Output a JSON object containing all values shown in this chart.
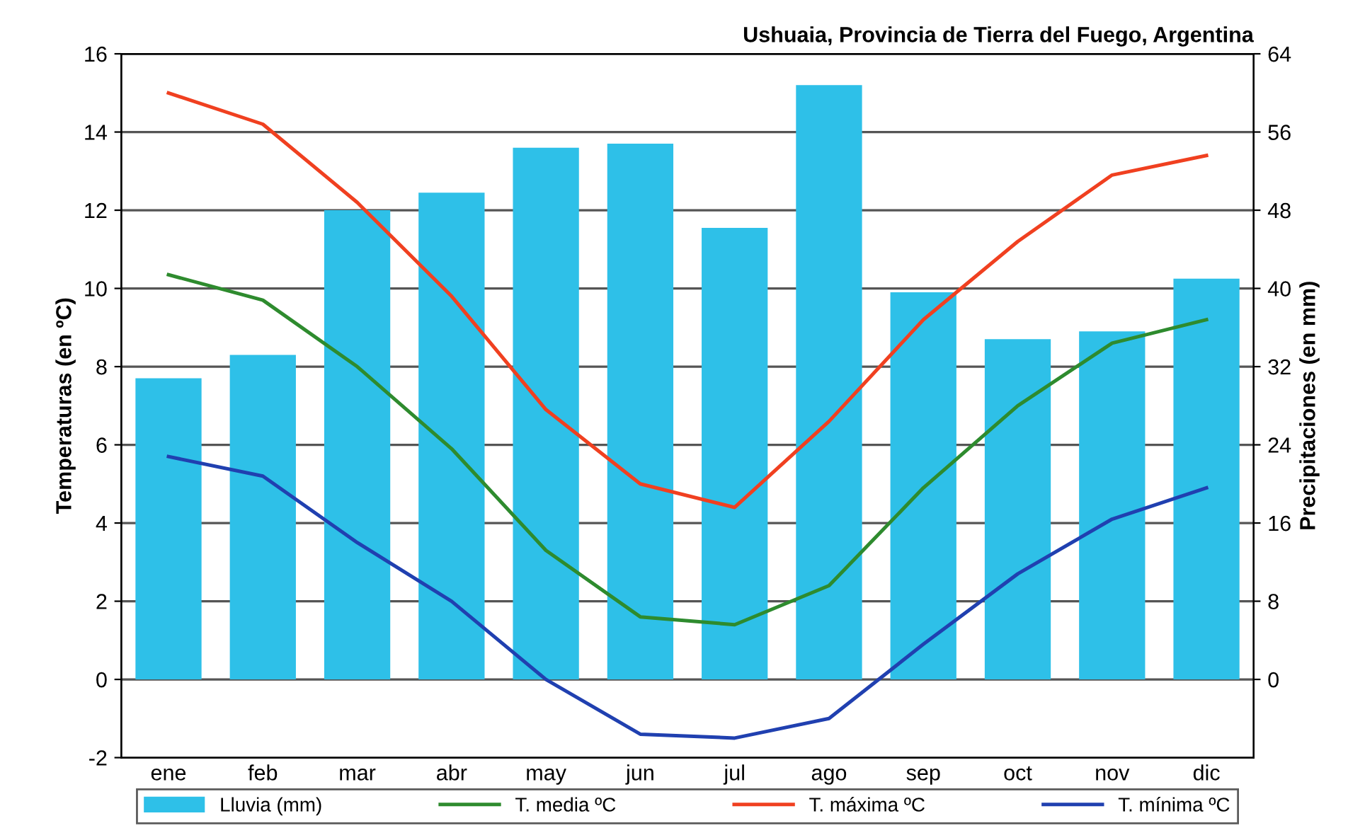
{
  "chart_data": {
    "type": "bar",
    "title": "Ushuaia, Provincia de Tierra del Fuego, Argentina",
    "ylabel": "Temperaturas (en ºC)",
    "y2label": "Precipitaciones (en mm)",
    "categories": [
      "ene",
      "feb",
      "mar",
      "abr",
      "may",
      "jun",
      "jul",
      "ago",
      "sep",
      "oct",
      "nov",
      "dic"
    ],
    "series": [
      {
        "name": "Lluvia (mm)",
        "axis": "y2",
        "color": "#2ec0e8",
        "values": [
          30.8,
          33.2,
          48,
          49.8,
          54.4,
          54.8,
          46.2,
          60.8,
          39.6,
          34.8,
          35.6,
          41
        ]
      },
      {
        "name": "T. media ºC",
        "type": "line",
        "color": "#2e8b2e",
        "values": [
          10.35,
          9.7,
          8.0,
          5.9,
          3.3,
          1.6,
          1.4,
          2.4,
          4.9,
          7.0,
          8.6,
          9.2
        ]
      },
      {
        "name": "T. máxima ºC",
        "type": "line",
        "color": "#f04020",
        "values": [
          15.0,
          14.2,
          12.2,
          9.8,
          6.9,
          5.0,
          4.4,
          6.6,
          9.2,
          11.2,
          12.9,
          13.4
        ]
      },
      {
        "name": "T. mínima ºC",
        "type": "line",
        "color": "#2040b0",
        "values": [
          5.7,
          5.2,
          3.5,
          2.0,
          0.0,
          -1.4,
          -1.5,
          -1.0,
          0.9,
          2.7,
          4.1,
          4.9
        ]
      }
    ],
    "ylim": [
      -2,
      16
    ],
    "yticks": [
      -2,
      0,
      2,
      4,
      6,
      8,
      10,
      12,
      14,
      16
    ],
    "y2lim": [
      -8,
      64
    ],
    "y2ticks": [
      0,
      8,
      16,
      24,
      32,
      40,
      48,
      56,
      64
    ],
    "grid": "y",
    "legend": "bottom",
    "marker": "none",
    "line_style": "solid"
  }
}
